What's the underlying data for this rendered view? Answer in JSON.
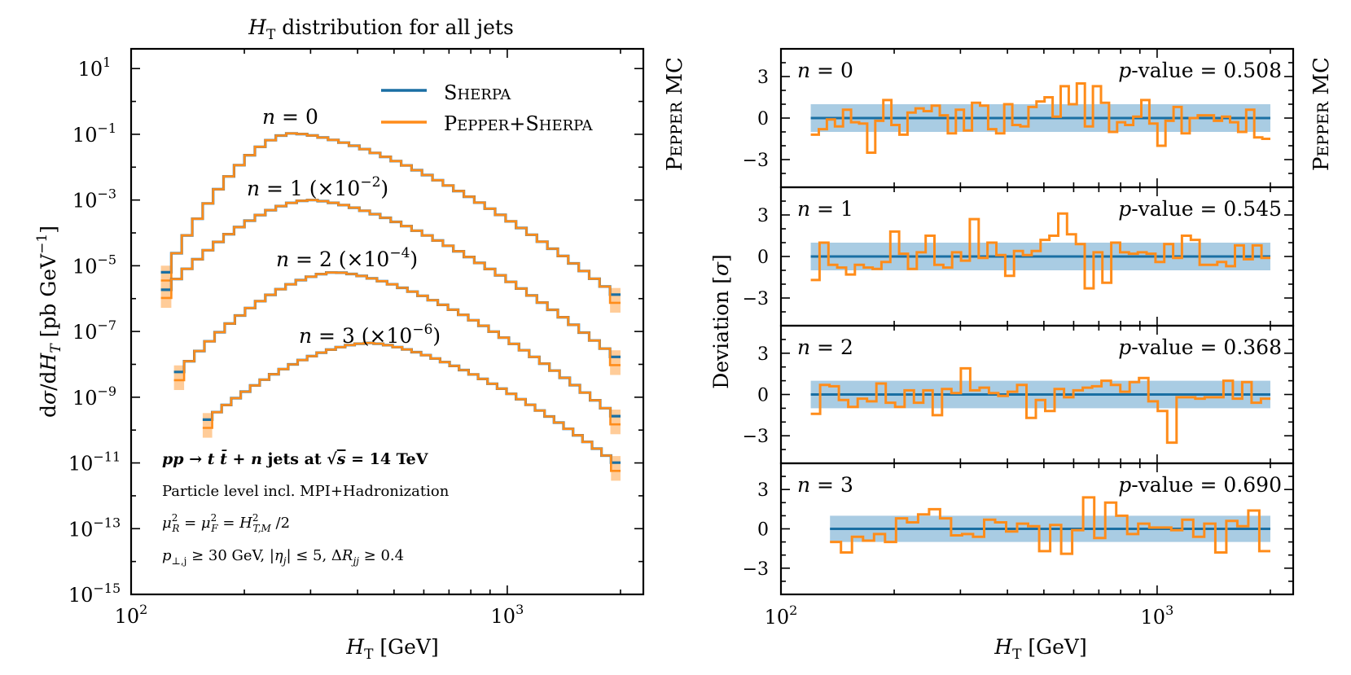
{
  "colors": {
    "sherpa": "#1a6fa3",
    "pepper": "#ff8c1a",
    "band": "#a9cce3"
  },
  "left_panel": {
    "title": "H_T distribution for all jets",
    "side_label": "PEPPER MC",
    "xlabel": "H_T [GeV]",
    "ylabel": "dσ/dH_T [pb GeV^-1]",
    "legend": [
      "SHERPA",
      "PEPPER+SHERPA"
    ],
    "process": "pp → t t̄ + n jets at √s = 14 TeV",
    "info_lines": [
      "Particle level incl. MPI+Hadronization",
      "μ_R² = μ_F² = H²_T,M /2",
      "p_⊥,j ≥ 30 GeV, |η_j| ≤ 5, ΔR_jj ≥ 0.4"
    ]
  },
  "right_panel": {
    "side_label": "PEPPER MC",
    "xlabel": "H_T [GeV]",
    "ylabel": "Deviation [σ]"
  },
  "chart_data": [
    {
      "type": "line",
      "title": "H_T distribution for all jets",
      "xlabel": "H_T [GeV]",
      "ylabel": "dσ/dH_T [pb GeV^-1]",
      "xscale": "log",
      "yscale": "log",
      "xlim": [
        100,
        2300
      ],
      "ylim_log10": [
        -15,
        1.6
      ],
      "x_ticks": [
        {
          "v": 100,
          "label": "10^2"
        },
        {
          "v": 1000,
          "label": "10^3"
        }
      ],
      "y_ticks": [
        {
          "v": 1,
          "label": "10^1"
        },
        {
          "v": -1,
          "label": "10^−1"
        },
        {
          "v": -3,
          "label": "10^−3"
        },
        {
          "v": -5,
          "label": "10^−5"
        },
        {
          "v": -7,
          "label": "10^−7"
        },
        {
          "v": -9,
          "label": "10^−9"
        },
        {
          "v": -11,
          "label": "10^−11"
        },
        {
          "v": -13,
          "label": "10^−13"
        },
        {
          "v": -15,
          "label": "10^−15"
        }
      ],
      "legend_position": "top-right",
      "series": [
        {
          "name": "n = 0",
          "label": "n = 0",
          "x_start": 120,
          "x_end": 2000,
          "peak_x": 268,
          "peak_log10": -0.97,
          "start_log10": -5.5,
          "end_log10": -6.0,
          "left_width": 0.1,
          "right_width": 0.44
        },
        {
          "name": "n = 1",
          "label": "n = 1 (×10^−2)",
          "x_start": 120,
          "x_end": 2000,
          "peak_x": 300,
          "peak_log10": -3.0,
          "start_log10": -5.9,
          "end_log10": -7.9,
          "left_width": 0.16,
          "right_width": 0.42
        },
        {
          "name": "n = 2",
          "label": "n = 2 (×10^−4)",
          "x_start": 130,
          "x_end": 2000,
          "peak_x": 350,
          "peak_log10": -5.2,
          "start_log10": -8.4,
          "end_log10": -9.7,
          "left_width": 0.2,
          "right_width": 0.42
        },
        {
          "name": "n = 3",
          "label": "n = 3 (×10^−6)",
          "x_start": 155,
          "x_end": 2000,
          "peak_x": 430,
          "peak_log10": -7.35,
          "start_log10": -9.8,
          "end_log10": -11.1,
          "left_width": 0.22,
          "right_width": 0.4
        }
      ]
    },
    {
      "type": "line",
      "xlabel": "H_T [GeV]",
      "ylabel": "Deviation [σ]",
      "xscale": "log",
      "xlim": [
        100,
        2300
      ],
      "ylim": [
        -5,
        5
      ],
      "y_ticks": [
        3,
        0,
        -3
      ],
      "x_ticks": [
        {
          "v": 100,
          "label": "10^2"
        },
        {
          "v": 1000,
          "label": "10^3"
        }
      ],
      "reference_band": [
        -1,
        1
      ],
      "panels": [
        {
          "label": "n = 0",
          "p_value_label": "p-value = 0.508",
          "x_start": 120,
          "x_end": 2000,
          "values": [
            -1.2,
            -0.8,
            -0.1,
            -0.6,
            0.6,
            -0.3,
            -0.4,
            -2.5,
            -0.2,
            1.3,
            -0.5,
            -1.2,
            0.4,
            0.7,
            0.5,
            0.9,
            0.2,
            -1.1,
            0.6,
            -0.9,
            1.1,
            0.9,
            -0.8,
            -1.1,
            1.0,
            -0.5,
            -0.6,
            0.8,
            1.2,
            1.5,
            0.1,
            2.3,
            1.0,
            2.5,
            -0.6,
            2.3,
            1.1,
            -1.0,
            -0.3,
            -0.5,
            0.1,
            1.3,
            -0.4,
            -2.0,
            -0.2,
            0.8,
            -1.1,
            0.0,
            0.2,
            0.2,
            -0.2,
            0.1,
            -0.3,
            -1.0,
            0.6,
            -1.4,
            -1.5
          ]
        },
        {
          "label": "n = 1",
          "p_value_label": "p-value = 0.545",
          "x_start": 120,
          "x_end": 2000,
          "values": [
            -1.7,
            1.0,
            -0.6,
            -0.8,
            -1.3,
            -0.6,
            -0.8,
            -0.9,
            -0.4,
            1.8,
            0.2,
            -0.9,
            0.3,
            1.5,
            -0.6,
            -0.8,
            0.3,
            -0.3,
            2.7,
            -0.1,
            1.0,
            0.1,
            -1.4,
            0.4,
            0.1,
            0.4,
            1.2,
            1.5,
            3.1,
            1.6,
            0.9,
            -2.3,
            0.3,
            -1.9,
            1.0,
            0.3,
            0.2,
            0.3,
            0.2,
            -0.4,
            0.9,
            -0.1,
            1.5,
            1.2,
            -0.6,
            -0.6,
            -0.4,
            -0.7,
            0.8,
            -0.2,
            0.8,
            -0.1
          ]
        },
        {
          "label": "n = 2",
          "p_value_label": "p-value = 0.368",
          "x_start": 120,
          "x_end": 2000,
          "values": [
            -1.4,
            0.7,
            0.6,
            -0.4,
            -0.9,
            -0.3,
            -0.5,
            0.8,
            -0.6,
            -0.9,
            0.3,
            -0.6,
            0.3,
            -1.5,
            0.4,
            0.1,
            1.9,
            0.3,
            0.5,
            0.1,
            -0.1,
            0.2,
            0.7,
            -1.7,
            -0.4,
            -1.2,
            0.4,
            -0.2,
            0.3,
            0.5,
            0.6,
            1.0,
            0.7,
            0.2,
            0.9,
            1.2,
            -0.5,
            -1.2,
            -3.5,
            -0.2,
            -0.2,
            -0.3,
            -0.2,
            -0.2,
            1.0,
            -0.3,
            0.9,
            -0.6,
            -0.3
          ]
        },
        {
          "label": "n = 3",
          "p_value_label": "p-value = 0.690",
          "x_start": 135,
          "x_end": 2000,
          "values": [
            -1.0,
            -1.8,
            -0.6,
            -0.9,
            -0.4,
            -1.0,
            0.8,
            0.5,
            1.1,
            1.5,
            0.8,
            -0.5,
            -0.4,
            -0.6,
            0.7,
            0.5,
            -0.2,
            0.4,
            0.2,
            -1.7,
            0.3,
            -1.9,
            -0.1,
            2.4,
            -0.7,
            2.0,
            1.0,
            -0.4,
            0.4,
            0.1,
            0.1,
            -0.1,
            0.7,
            -0.6,
            0.4,
            -1.8,
            0.6,
            0.2,
            1.4,
            -1.7
          ]
        }
      ]
    }
  ]
}
